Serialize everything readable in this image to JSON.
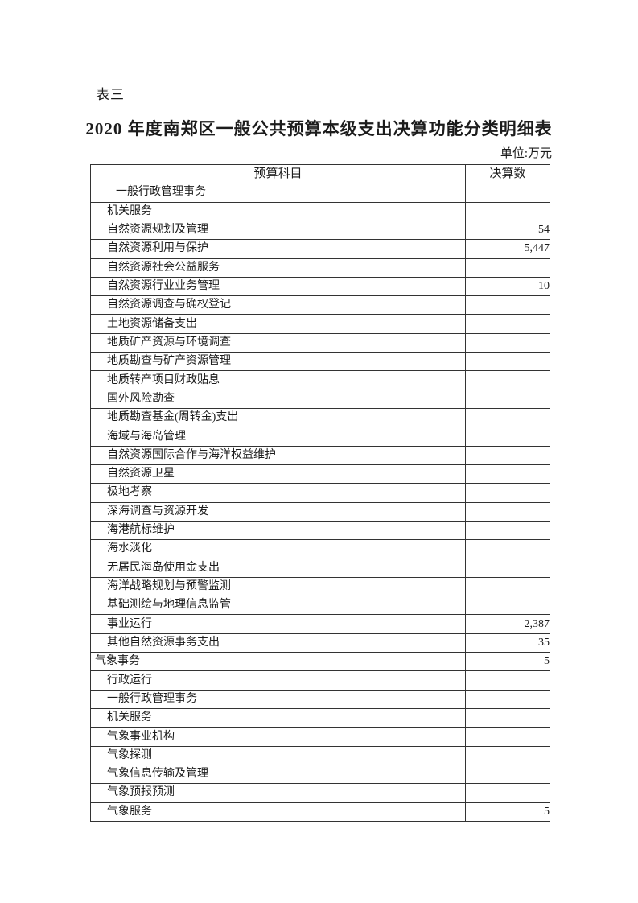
{
  "page": {
    "table_label": "表三",
    "title": "2020 年度南郑区一般公共预算本级支出决算功能分类明细表",
    "unit_note": "单位:万元"
  },
  "table": {
    "header": {
      "subject": "预算科目",
      "amount": "决算数"
    },
    "rows": [
      {
        "subject": "一般行政管理事务",
        "amount": "",
        "indent": 3
      },
      {
        "subject": "机关服务",
        "amount": "",
        "indent": 2
      },
      {
        "subject": "自然资源规划及管理",
        "amount": "54",
        "indent": 2
      },
      {
        "subject": "自然资源利用与保护",
        "amount": "5,447",
        "indent": 2
      },
      {
        "subject": "自然资源社会公益服务",
        "amount": "",
        "indent": 2
      },
      {
        "subject": "自然资源行业业务管理",
        "amount": "10",
        "indent": 2
      },
      {
        "subject": "自然资源调查与确权登记",
        "amount": "",
        "indent": 2
      },
      {
        "subject": "土地资源储备支出",
        "amount": "",
        "indent": 2
      },
      {
        "subject": "地质矿产资源与环境调查",
        "amount": "",
        "indent": 2
      },
      {
        "subject": "地质勘查与矿产资源管理",
        "amount": "",
        "indent": 2
      },
      {
        "subject": "地质转产项目财政贴息",
        "amount": "",
        "indent": 2
      },
      {
        "subject": "国外风险勘查",
        "amount": "",
        "indent": 2
      },
      {
        "subject": "地质勘查基金(周转金)支出",
        "amount": "",
        "indent": 2
      },
      {
        "subject": "海域与海岛管理",
        "amount": "",
        "indent": 2
      },
      {
        "subject": "自然资源国际合作与海洋权益维护",
        "amount": "",
        "indent": 2
      },
      {
        "subject": "自然资源卫星",
        "amount": "",
        "indent": 2
      },
      {
        "subject": "极地考察",
        "amount": "",
        "indent": 2
      },
      {
        "subject": "深海调查与资源开发",
        "amount": "",
        "indent": 2
      },
      {
        "subject": "海港航标维护",
        "amount": "",
        "indent": 2
      },
      {
        "subject": "海水淡化",
        "amount": "",
        "indent": 2
      },
      {
        "subject": "无居民海岛使用金支出",
        "amount": "",
        "indent": 2
      },
      {
        "subject": "海洋战略规划与预警监测",
        "amount": "",
        "indent": 2
      },
      {
        "subject": "基础测绘与地理信息监管",
        "amount": "",
        "indent": 2
      },
      {
        "subject": "事业运行",
        "amount": "2,387",
        "indent": 2
      },
      {
        "subject": "其他自然资源事务支出",
        "amount": "35",
        "indent": 2
      },
      {
        "subject": "气象事务",
        "amount": "5",
        "indent": 1
      },
      {
        "subject": "行政运行",
        "amount": "",
        "indent": 2
      },
      {
        "subject": "一般行政管理事务",
        "amount": "",
        "indent": 2
      },
      {
        "subject": "机关服务",
        "amount": "",
        "indent": 2
      },
      {
        "subject": "气象事业机构",
        "amount": "",
        "indent": 2
      },
      {
        "subject": "气象探测",
        "amount": "",
        "indent": 2
      },
      {
        "subject": "气象信息传输及管理",
        "amount": "",
        "indent": 2
      },
      {
        "subject": "气象预报预测",
        "amount": "",
        "indent": 2
      },
      {
        "subject": "气象服务",
        "amount": "5",
        "indent": 2
      }
    ]
  }
}
